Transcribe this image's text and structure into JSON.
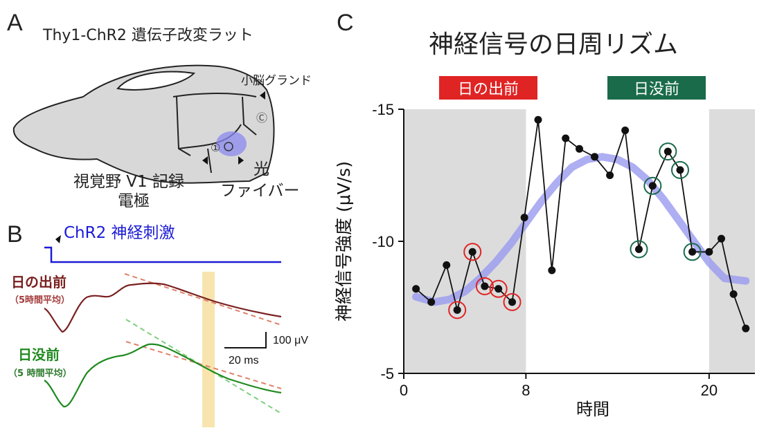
{
  "panels": {
    "A": {
      "letter": "A",
      "title": "Thy1-ChR2 遺伝子改変ラット",
      "labels": {
        "cerebellum": "小脳グランド",
        "cerebellum_mark": "Ⓒ",
        "v1_mark": "①",
        "electrode_line1": "視覚野 V1 記録",
        "electrode_line2": "電極",
        "fiber_line1": "光",
        "fiber_line2": "ファイバー"
      }
    },
    "B": {
      "letter": "B",
      "stim_label": "ChR2 神経刺激",
      "trace1_label": "日の出前",
      "trace1_sub": "（5時間平均）",
      "trace2_label": "日没前",
      "trace2_sub": "（5 時間平均）",
      "scale_v": "100 μV",
      "scale_t": "20 ms",
      "colors": {
        "stim": "#1b1bd6",
        "trace1": "#7a1f1f",
        "trace2": "#1f8a1f",
        "highlight": "#f6dfa0"
      }
    },
    "C": {
      "letter": "C",
      "title": "神経信号の日周リズム",
      "tag_dawn": "日の出前",
      "tag_dusk": "日没前",
      "colors": {
        "dawn": "#e02424",
        "dusk": "#1a6b4a",
        "fit": "#9a9af0",
        "shade": "#dcdcdc"
      }
    }
  },
  "chart_data": {
    "type": "line",
    "title": "神経信号の日周リズム",
    "xlabel": "時間",
    "ylabel": "神経信号強度 (μV/s)",
    "x_ticks": [
      "0",
      "8",
      "20"
    ],
    "y_ticks": [
      "-15",
      "-10",
      "-5"
    ],
    "xlim": [
      0,
      23
    ],
    "ylim": [
      -5,
      -15
    ],
    "y_inverted": true,
    "shaded_x_ranges": [
      [
        0,
        8
      ],
      [
        20,
        23
      ]
    ],
    "series": [
      {
        "values_x": [
          0.8,
          1.8,
          2.8,
          3.5,
          4.5,
          5.3,
          6.2,
          7.1,
          7.9,
          8.8,
          9.7,
          10.6,
          11.5,
          12.5,
          13.5,
          14.5,
          15.4,
          16.3,
          17.3,
          18.1,
          18.9,
          20.0,
          20.8,
          21.6,
          22.4
        ],
        "values_y": [
          -8.2,
          -7.7,
          -9.1,
          -7.4,
          -9.6,
          -8.3,
          -8.2,
          -7.7,
          -10.9,
          -14.6,
          -8.9,
          -13.9,
          -13.5,
          -13.2,
          -12.5,
          -14.2,
          -9.7,
          -12.1,
          -13.4,
          -12.7,
          -9.6,
          -9.6,
          -10.1,
          -8.0,
          -6.7
        ]
      }
    ],
    "highlighted_dawn_x": [
      3.5,
      4.5,
      5.3,
      6.2,
      7.1
    ],
    "highlighted_dusk_x": [
      15.4,
      16.3,
      17.3,
      18.1,
      18.9
    ],
    "fit_curve": {
      "x": [
        0.8,
        2,
        3,
        4,
        5,
        6,
        7,
        8,
        9,
        10,
        11,
        12,
        13,
        14,
        15,
        16,
        17,
        18,
        19,
        20,
        21,
        22.4
      ],
      "y": [
        -7.9,
        -7.7,
        -7.8,
        -8.1,
        -8.6,
        -9.2,
        -9.9,
        -10.7,
        -11.5,
        -12.2,
        -12.8,
        -13.1,
        -13.2,
        -13.1,
        -12.8,
        -12.3,
        -11.6,
        -10.8,
        -10.0,
        -9.2,
        -8.6,
        -8.5
      ]
    }
  }
}
